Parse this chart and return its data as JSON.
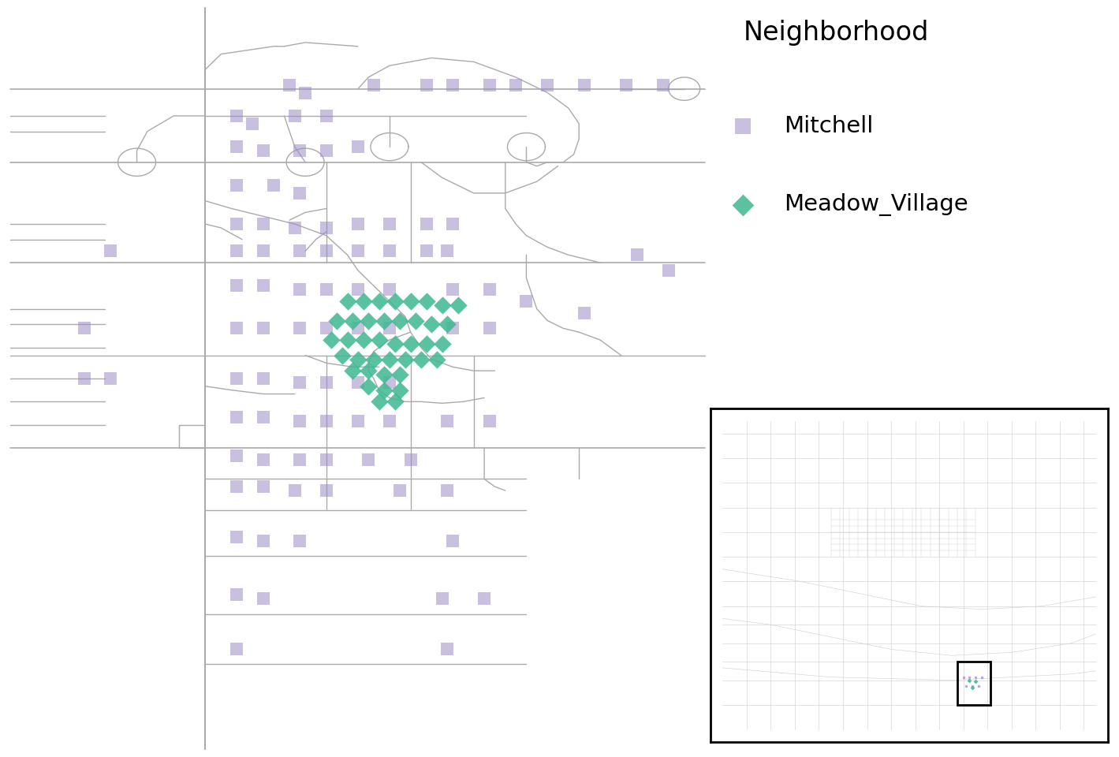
{
  "mitchell_color": "#9B8DC4",
  "meadow_color": "#3DB890",
  "mitchell_alpha": 0.55,
  "meadow_alpha": 0.85,
  "mitchell_size": 120,
  "meadow_size": 130,
  "background_color": "#ffffff",
  "road_color": "#aaaaaa",
  "road_lw": 1.0,
  "legend_title": "Neighborhood",
  "legend_mitchell": "Mitchell",
  "legend_meadow": "Meadow_Village"
}
